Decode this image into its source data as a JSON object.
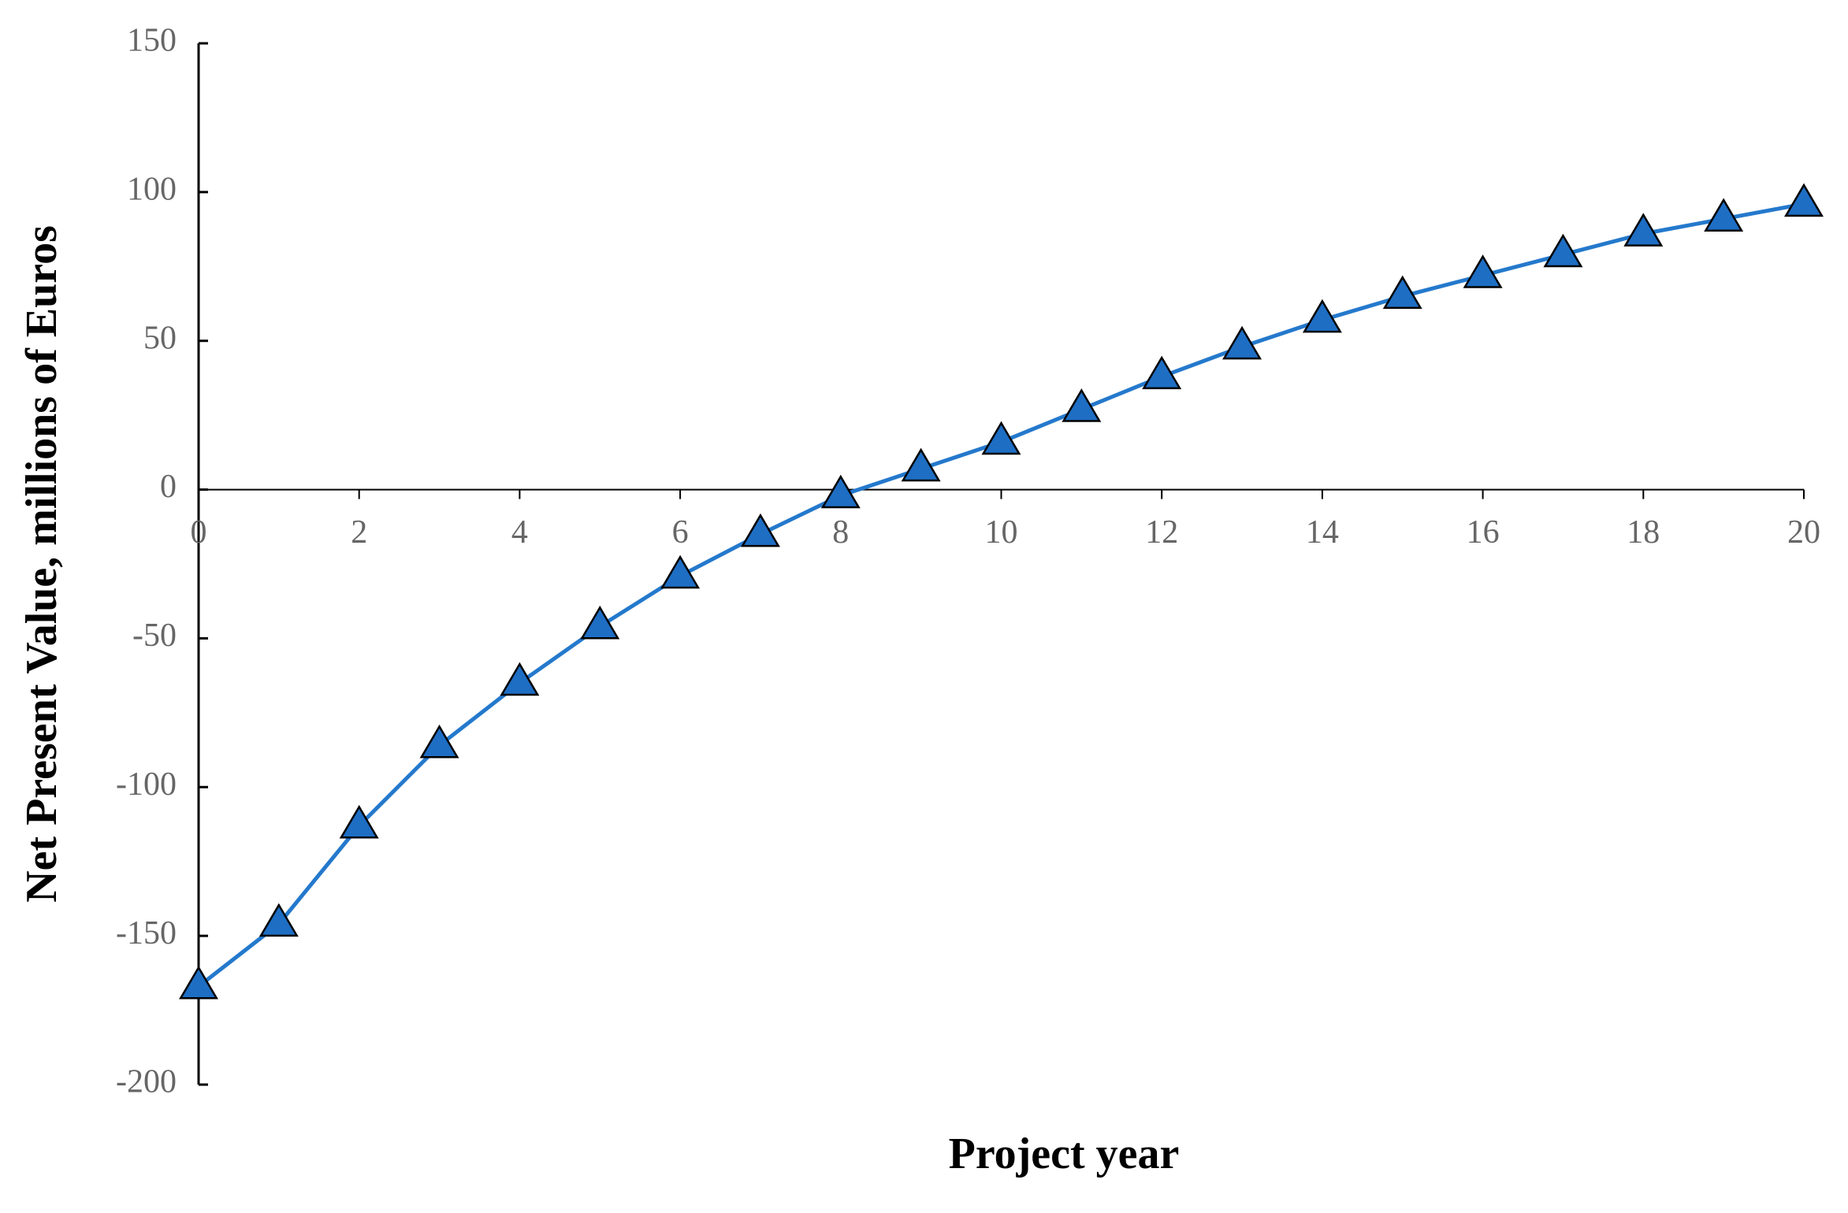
{
  "chart_data": {
    "type": "line",
    "x_label": "Project year",
    "y_label": "Net Present Value, millions of Euros",
    "x": [
      0,
      1,
      2,
      3,
      4,
      5,
      6,
      7,
      8,
      9,
      10,
      11,
      12,
      13,
      14,
      15,
      16,
      17,
      18,
      19,
      20
    ],
    "series": [
      {
        "color": "#2479cc",
        "marker_color": "#1e6ec4",
        "values": [
          -167,
          -146,
          -113,
          -86,
          -65,
          -46,
          -29,
          -15,
          -2,
          7,
          16,
          27,
          38,
          48,
          57,
          65,
          72,
          79,
          86,
          91,
          96
        ]
      }
    ],
    "xlim": [
      0,
      20
    ],
    "xticks": [
      0,
      2,
      4,
      6,
      8,
      10,
      12,
      14,
      16,
      18,
      20
    ],
    "ylim": [
      -200,
      150
    ],
    "yticks": [
      -200,
      -150,
      -100,
      -50,
      0,
      50,
      100,
      150
    ],
    "grid": false
  }
}
